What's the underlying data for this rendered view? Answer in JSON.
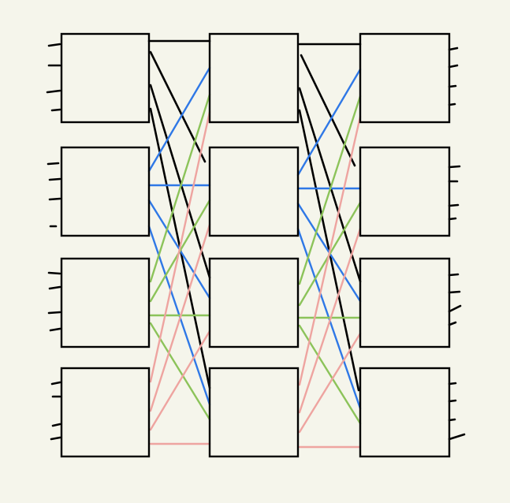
{
  "diagram": {
    "type": "three-stage switching network",
    "stages": 3,
    "switches_per_stage": 4,
    "ports_per_switch": 4,
    "colors": {
      "background": "#f5f5eb",
      "box_stroke": "#000000",
      "black_link": "#000000",
      "blue_link": "#2f78e6",
      "green_link": "#8cc35a",
      "pink_link": "#eea4a0"
    },
    "link_groups": [
      "black",
      "blue",
      "green",
      "pink"
    ]
  }
}
